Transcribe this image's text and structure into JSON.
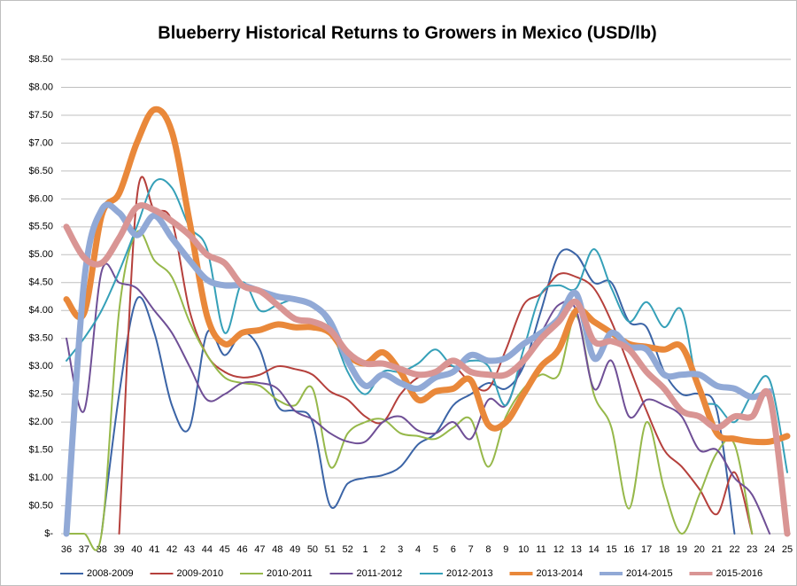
{
  "chart_data": {
    "type": "line",
    "title": "Blueberry Historical Returns to Growers in Mexico (USD/lb)",
    "categories": [
      "36",
      "37",
      "38",
      "39",
      "40",
      "41",
      "42",
      "43",
      "44",
      "45",
      "46",
      "47",
      "48",
      "49",
      "50",
      "51",
      "52",
      "1",
      "2",
      "3",
      "4",
      "5",
      "6",
      "7",
      "8",
      "9",
      "10",
      "11",
      "12",
      "13",
      "14",
      "15",
      "16",
      "17",
      "18",
      "19",
      "20",
      "21",
      "22",
      "23",
      "24",
      "25"
    ],
    "ylim": [
      0,
      8.5
    ],
    "yticks": [
      {
        "value": 0,
        "label": "$-"
      },
      {
        "value": 0.5,
        "label": "$0.50"
      },
      {
        "value": 1,
        "label": "$1.00"
      },
      {
        "value": 1.5,
        "label": "$1.50"
      },
      {
        "value": 2,
        "label": "$2.00"
      },
      {
        "value": 2.5,
        "label": "$2.50"
      },
      {
        "value": 3,
        "label": "$3.00"
      },
      {
        "value": 3.5,
        "label": "$3.50"
      },
      {
        "value": 4,
        "label": "$4.00"
      },
      {
        "value": 4.5,
        "label": "$4.50"
      },
      {
        "value": 5,
        "label": "$5.00"
      },
      {
        "value": 5.5,
        "label": "$5.50"
      },
      {
        "value": 6,
        "label": "$6.00"
      },
      {
        "value": 6.5,
        "label": "$6.50"
      },
      {
        "value": 7,
        "label": "$7.00"
      },
      {
        "value": 7.5,
        "label": "$7.50"
      },
      {
        "value": 8,
        "label": "$8.00"
      },
      {
        "value": 8.5,
        "label": "$8.50"
      }
    ],
    "grid": true,
    "legend": "bottom",
    "series": [
      {
        "name": "2008-2009",
        "color": "#3b64a6",
        "width": 2,
        "values": [
          null,
          null,
          0,
          2.5,
          4.2,
          3.6,
          2.3,
          1.9,
          3.6,
          3.2,
          3.6,
          3.3,
          2.3,
          2.2,
          2.0,
          0.5,
          0.9,
          1.0,
          1.05,
          1.2,
          1.6,
          1.8,
          2.3,
          2.5,
          2.7,
          2.6,
          3.0,
          4.0,
          5.0,
          5.0,
          4.5,
          4.5,
          3.8,
          3.7,
          2.9,
          2.5,
          2.5,
          2.2,
          0,
          null,
          null,
          null
        ]
      },
      {
        "name": "2009-2010",
        "color": "#b5403c",
        "width": 2,
        "values": [
          null,
          null,
          null,
          0,
          6.0,
          5.8,
          5.6,
          4.0,
          3.2,
          2.9,
          2.8,
          2.85,
          3.0,
          2.95,
          2.85,
          2.55,
          2.4,
          2.1,
          2.0,
          2.5,
          2.8,
          2.9,
          3.0,
          2.7,
          2.6,
          3.3,
          4.1,
          4.3,
          4.65,
          4.6,
          4.4,
          3.8,
          3.0,
          2.2,
          1.5,
          1.2,
          0.8,
          0.35,
          1.1,
          0,
          null,
          null
        ]
      },
      {
        "name": "2010-2011",
        "color": "#96b84a",
        "width": 2,
        "values": [
          0,
          0,
          0,
          4.0,
          5.4,
          4.9,
          4.6,
          3.8,
          3.2,
          2.8,
          2.7,
          2.65,
          2.4,
          2.3,
          2.6,
          1.2,
          1.8,
          2.0,
          2.05,
          1.8,
          1.75,
          1.7,
          1.9,
          2.05,
          1.2,
          2.1,
          2.6,
          2.85,
          2.85,
          3.9,
          2.5,
          1.9,
          0.45,
          2.0,
          0.8,
          0,
          0.7,
          1.45,
          1.6,
          0,
          null,
          null
        ]
      },
      {
        "name": "2011-2012",
        "color": "#6f4f96",
        "width": 2,
        "values": [
          3.5,
          2.2,
          4.7,
          4.5,
          4.4,
          4.0,
          3.6,
          3.0,
          2.4,
          2.5,
          2.7,
          2.7,
          2.6,
          2.2,
          2.05,
          1.8,
          1.65,
          1.65,
          2.0,
          2.1,
          1.85,
          1.8,
          2.0,
          1.7,
          2.4,
          2.3,
          3.1,
          3.6,
          4.1,
          4.0,
          2.6,
          3.1,
          2.1,
          2.4,
          2.3,
          2.1,
          1.5,
          1.5,
          1.0,
          0.7,
          0,
          null
        ]
      },
      {
        "name": "2012-2013",
        "color": "#35a0b8",
        "width": 2,
        "values": [
          3.1,
          3.5,
          4.0,
          4.7,
          5.5,
          6.3,
          6.2,
          5.5,
          5.1,
          3.6,
          4.5,
          4.0,
          4.1,
          4.2,
          4.1,
          3.7,
          2.9,
          2.5,
          2.9,
          2.9,
          3.05,
          3.3,
          3.0,
          3.1,
          3.0,
          2.3,
          3.3,
          4.3,
          4.45,
          4.4,
          5.1,
          4.4,
          3.8,
          4.15,
          3.7,
          4.0,
          2.5,
          2.3,
          2.0,
          2.5,
          2.75,
          1.1
        ]
      },
      {
        "name": "2013-2014",
        "color": "#e9883a",
        "width": 7,
        "values": [
          4.2,
          3.95,
          5.7,
          6.1,
          7.0,
          7.6,
          7.2,
          5.6,
          3.9,
          3.4,
          3.6,
          3.65,
          3.75,
          3.7,
          3.7,
          3.6,
          3.2,
          3.05,
          3.25,
          2.9,
          2.4,
          2.55,
          2.6,
          2.75,
          1.95,
          2.0,
          2.5,
          3.0,
          3.3,
          4.0,
          3.8,
          3.6,
          3.4,
          3.35,
          3.3,
          3.35,
          2.6,
          1.8,
          1.7,
          1.65,
          1.65,
          1.75
        ]
      },
      {
        "name": "2014-2015",
        "color": "#91a9d6",
        "width": 7,
        "values": [
          0,
          4.5,
          5.8,
          5.75,
          5.35,
          5.7,
          5.3,
          4.9,
          4.55,
          4.45,
          4.45,
          4.35,
          4.25,
          4.2,
          4.1,
          3.8,
          3.1,
          2.65,
          2.85,
          2.7,
          2.6,
          2.8,
          2.9,
          3.2,
          3.1,
          3.15,
          3.4,
          3.6,
          3.85,
          4.3,
          3.15,
          3.6,
          3.35,
          3.3,
          2.85,
          2.85,
          2.85,
          2.65,
          2.6,
          2.45,
          2.55,
          null
        ]
      },
      {
        "name": "2015-2016",
        "color": "#d99594",
        "width": 7,
        "values": [
          5.5,
          4.95,
          4.85,
          5.3,
          5.85,
          5.8,
          5.6,
          5.35,
          5.0,
          4.85,
          4.45,
          4.35,
          4.1,
          3.85,
          3.8,
          3.65,
          3.25,
          3.05,
          3.05,
          2.95,
          2.85,
          2.9,
          3.1,
          2.9,
          2.85,
          2.85,
          3.1,
          3.5,
          3.8,
          4.15,
          3.45,
          3.45,
          3.3,
          2.9,
          2.6,
          2.2,
          2.1,
          1.9,
          2.1,
          2.1,
          2.45,
          0
        ]
      }
    ]
  }
}
